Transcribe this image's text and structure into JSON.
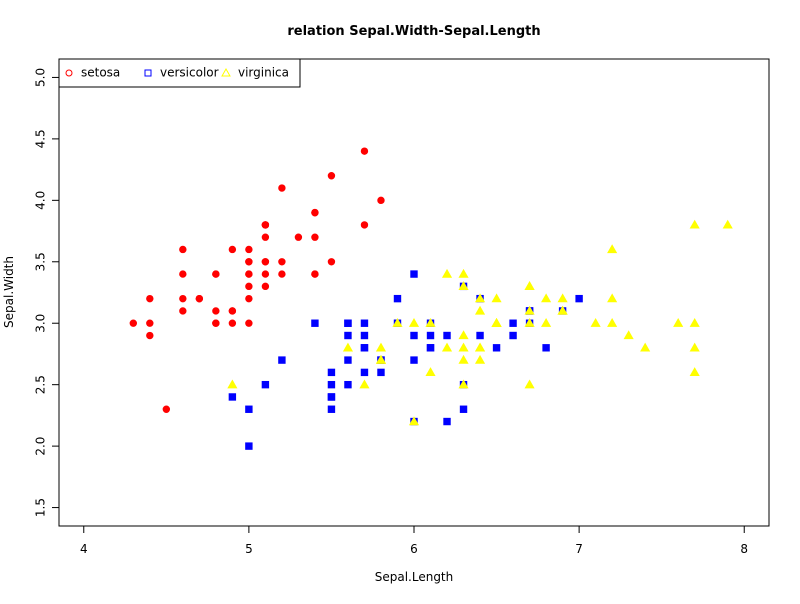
{
  "chart_data": {
    "type": "scatter",
    "title": "relation Sepal.Width-Sepal.Length",
    "xlabel": "Sepal.Length",
    "ylabel": "Sepal.Width",
    "xlim": [
      3.85,
      8.15
    ],
    "ylim": [
      1.35,
      5.15
    ],
    "xticks": [
      4,
      5,
      6,
      7,
      8
    ],
    "yticks": [
      1.5,
      2.0,
      2.5,
      3.0,
      3.5,
      4.0,
      4.5,
      5.0
    ],
    "xtick_labels": [
      "4",
      "5",
      "6",
      "7",
      "8"
    ],
    "ytick_labels": [
      "1.5",
      "2.0",
      "2.5",
      "3.0",
      "3.5",
      "4.0",
      "4.5",
      "5.0"
    ],
    "grid": false,
    "legend_position": "top-left",
    "series": [
      {
        "name": "setosa",
        "color": "#ff0000",
        "marker": "circle",
        "points": [
          [
            5.1,
            3.5
          ],
          [
            4.9,
            3.0
          ],
          [
            4.7,
            3.2
          ],
          [
            4.6,
            3.1
          ],
          [
            5.0,
            3.6
          ],
          [
            5.4,
            3.9
          ],
          [
            4.6,
            3.4
          ],
          [
            5.0,
            3.4
          ],
          [
            4.4,
            2.9
          ],
          [
            4.9,
            3.1
          ],
          [
            5.4,
            3.7
          ],
          [
            4.8,
            3.4
          ],
          [
            4.8,
            3.0
          ],
          [
            4.3,
            3.0
          ],
          [
            5.8,
            4.0
          ],
          [
            5.7,
            4.4
          ],
          [
            5.4,
            3.9
          ],
          [
            5.1,
            3.5
          ],
          [
            5.7,
            3.8
          ],
          [
            5.1,
            3.8
          ],
          [
            5.4,
            3.4
          ],
          [
            5.1,
            3.7
          ],
          [
            4.6,
            3.6
          ],
          [
            5.1,
            3.3
          ],
          [
            4.8,
            3.4
          ],
          [
            5.0,
            3.0
          ],
          [
            5.0,
            3.4
          ],
          [
            5.2,
            3.5
          ],
          [
            5.2,
            3.4
          ],
          [
            4.7,
            3.2
          ],
          [
            4.8,
            3.1
          ],
          [
            5.4,
            3.4
          ],
          [
            5.2,
            4.1
          ],
          [
            5.5,
            4.2
          ],
          [
            4.9,
            3.1
          ],
          [
            5.0,
            3.2
          ],
          [
            5.5,
            3.5
          ],
          [
            4.9,
            3.6
          ],
          [
            4.4,
            3.0
          ],
          [
            5.1,
            3.4
          ],
          [
            5.0,
            3.5
          ],
          [
            4.5,
            2.3
          ],
          [
            4.4,
            3.2
          ],
          [
            5.0,
            3.5
          ],
          [
            5.1,
            3.8
          ],
          [
            4.8,
            3.0
          ],
          [
            5.1,
            3.8
          ],
          [
            4.6,
            3.2
          ],
          [
            5.3,
            3.7
          ],
          [
            5.0,
            3.3
          ]
        ]
      },
      {
        "name": "versicolor",
        "color": "#0000ff",
        "marker": "square",
        "points": [
          [
            7.0,
            3.2
          ],
          [
            6.4,
            3.2
          ],
          [
            6.9,
            3.1
          ],
          [
            5.5,
            2.3
          ],
          [
            6.5,
            2.8
          ],
          [
            5.7,
            2.8
          ],
          [
            6.3,
            3.3
          ],
          [
            4.9,
            2.4
          ],
          [
            6.6,
            2.9
          ],
          [
            5.2,
            2.7
          ],
          [
            5.0,
            2.0
          ],
          [
            5.9,
            3.0
          ],
          [
            6.0,
            2.2
          ],
          [
            6.1,
            2.9
          ],
          [
            5.6,
            2.9
          ],
          [
            6.7,
            3.1
          ],
          [
            5.6,
            3.0
          ],
          [
            5.8,
            2.7
          ],
          [
            6.2,
            2.2
          ],
          [
            5.6,
            2.5
          ],
          [
            5.9,
            3.2
          ],
          [
            6.1,
            2.8
          ],
          [
            6.3,
            2.5
          ],
          [
            6.1,
            2.8
          ],
          [
            6.4,
            2.9
          ],
          [
            6.6,
            3.0
          ],
          [
            6.8,
            2.8
          ],
          [
            6.7,
            3.0
          ],
          [
            6.0,
            2.9
          ],
          [
            5.7,
            2.6
          ],
          [
            5.5,
            2.4
          ],
          [
            5.5,
            2.4
          ],
          [
            5.8,
            2.7
          ],
          [
            6.0,
            2.7
          ],
          [
            5.4,
            3.0
          ],
          [
            6.0,
            3.4
          ],
          [
            6.7,
            3.1
          ],
          [
            6.3,
            2.3
          ],
          [
            5.6,
            3.0
          ],
          [
            5.5,
            2.5
          ],
          [
            5.5,
            2.6
          ],
          [
            6.1,
            3.0
          ],
          [
            5.8,
            2.6
          ],
          [
            5.0,
            2.3
          ],
          [
            5.6,
            2.7
          ],
          [
            5.7,
            3.0
          ],
          [
            5.7,
            2.9
          ],
          [
            6.2,
            2.9
          ],
          [
            5.1,
            2.5
          ],
          [
            5.7,
            2.8
          ]
        ]
      },
      {
        "name": "virginica",
        "color": "#ffff00",
        "marker": "triangle",
        "points": [
          [
            6.3,
            3.3
          ],
          [
            5.8,
            2.7
          ],
          [
            7.1,
            3.0
          ],
          [
            6.3,
            2.9
          ],
          [
            6.5,
            3.0
          ],
          [
            7.6,
            3.0
          ],
          [
            4.9,
            2.5
          ],
          [
            7.3,
            2.9
          ],
          [
            6.7,
            2.5
          ],
          [
            7.2,
            3.6
          ],
          [
            6.5,
            3.2
          ],
          [
            6.4,
            2.7
          ],
          [
            6.8,
            3.0
          ],
          [
            5.7,
            2.5
          ],
          [
            5.8,
            2.8
          ],
          [
            6.4,
            3.2
          ],
          [
            6.5,
            3.0
          ],
          [
            7.7,
            3.8
          ],
          [
            7.7,
            2.6
          ],
          [
            6.0,
            2.2
          ],
          [
            6.9,
            3.2
          ],
          [
            5.6,
            2.8
          ],
          [
            7.7,
            2.8
          ],
          [
            6.3,
            2.7
          ],
          [
            6.7,
            3.3
          ],
          [
            7.2,
            3.2
          ],
          [
            6.2,
            2.8
          ],
          [
            6.1,
            3.0
          ],
          [
            6.4,
            2.8
          ],
          [
            7.2,
            3.0
          ],
          [
            7.4,
            2.8
          ],
          [
            7.9,
            3.8
          ],
          [
            6.4,
            2.8
          ],
          [
            6.3,
            2.8
          ],
          [
            6.1,
            2.6
          ],
          [
            7.7,
            3.0
          ],
          [
            6.3,
            3.4
          ],
          [
            6.4,
            3.1
          ],
          [
            6.0,
            3.0
          ],
          [
            6.9,
            3.1
          ],
          [
            6.7,
            3.1
          ],
          [
            6.9,
            3.1
          ],
          [
            5.8,
            2.7
          ],
          [
            6.8,
            3.2
          ],
          [
            6.7,
            3.3
          ],
          [
            6.7,
            3.0
          ],
          [
            6.3,
            2.5
          ],
          [
            6.5,
            3.0
          ],
          [
            6.2,
            3.4
          ],
          [
            5.9,
            3.0
          ]
        ]
      }
    ]
  }
}
